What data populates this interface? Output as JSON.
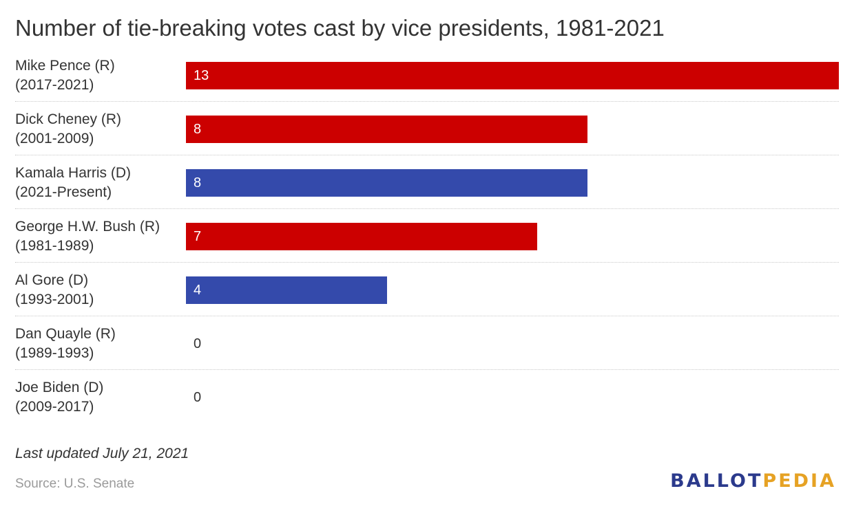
{
  "title": "Number of tie-breaking votes cast by vice presidents, 1981-2021",
  "colors": {
    "republican": "#cc0000",
    "democrat": "#344aab"
  },
  "chart_data": {
    "type": "bar",
    "orientation": "horizontal",
    "title": "Number of tie-breaking votes cast by vice presidents, 1981-2021",
    "xlabel": "",
    "ylabel": "",
    "xlim": [
      0,
      13
    ],
    "grid": false,
    "categories": [
      {
        "name": "Mike Pence (R)",
        "term": "(2017-2021)",
        "party": "R"
      },
      {
        "name": "Dick Cheney (R)",
        "term": "(2001-2009)",
        "party": "R"
      },
      {
        "name": "Kamala Harris (D)",
        "term": "(2021-Present)",
        "party": "D"
      },
      {
        "name": "George H.W. Bush (R)",
        "term": "(1981-1989)",
        "party": "R"
      },
      {
        "name": "Al Gore (D)",
        "term": "(1993-2001)",
        "party": "D"
      },
      {
        "name": "Dan Quayle (R)",
        "term": "(1989-1993)",
        "party": "R"
      },
      {
        "name": "Joe Biden (D)",
        "term": "(2009-2017)",
        "party": "D"
      }
    ],
    "values": [
      13,
      8,
      8,
      7,
      4,
      0,
      0
    ]
  },
  "footer": {
    "updated": "Last updated July 21, 2021",
    "source": "Source: U.S. Senate"
  },
  "logo": {
    "part1": "BALLOT",
    "part2": "PEDIA"
  }
}
